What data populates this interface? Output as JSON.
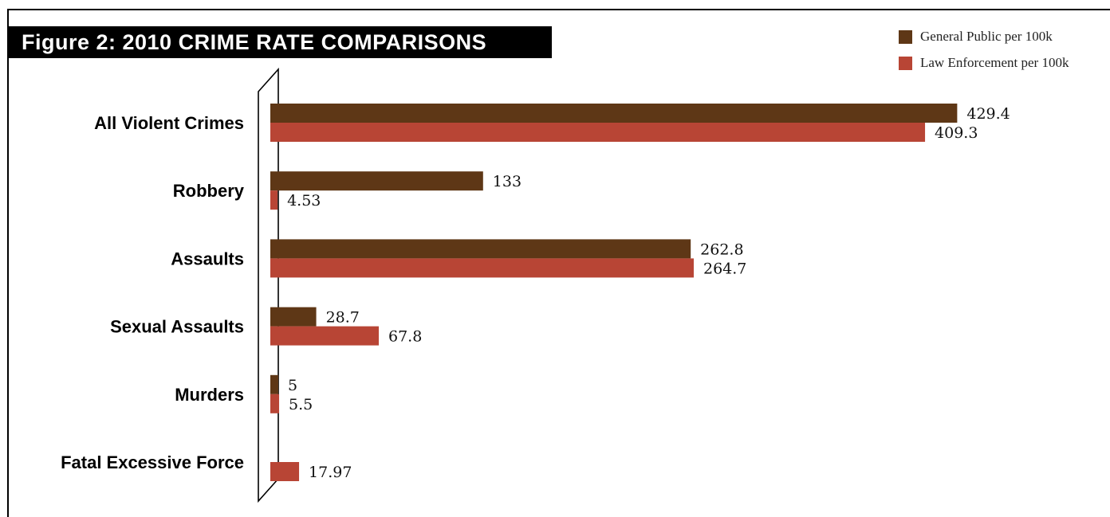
{
  "title": "Figure 2:  2010 CRIME RATE COMPARISONS",
  "colors": {
    "general_public": "#5e3716",
    "law_enforcement": "#b84535"
  },
  "chart_data": {
    "type": "bar",
    "orientation": "horizontal",
    "title": "Figure 2:  2010 CRIME RATE COMPARISONS",
    "categories": [
      "All Violent Crimes",
      "Robbery",
      "Assaults",
      "Sexual Assaults",
      "Murders",
      "Fatal Excessive Force"
    ],
    "series": [
      {
        "name": "General Public per 100k",
        "values": [
          429.4,
          133,
          262.8,
          28.7,
          5,
          null
        ],
        "labels": [
          "429.4",
          "133",
          "262.8",
          "28.7",
          "5",
          null
        ]
      },
      {
        "name": "Law Enforcement per 100k",
        "values": [
          409.3,
          4.53,
          264.7,
          67.8,
          5.5,
          17.97
        ],
        "labels": [
          "409.3",
          "4.53",
          "264.7",
          "67.8",
          "5.5",
          "17.97"
        ]
      }
    ],
    "xlabel": "",
    "ylabel": "",
    "axis_break": true,
    "legend_position": "top-right",
    "grid": false
  }
}
